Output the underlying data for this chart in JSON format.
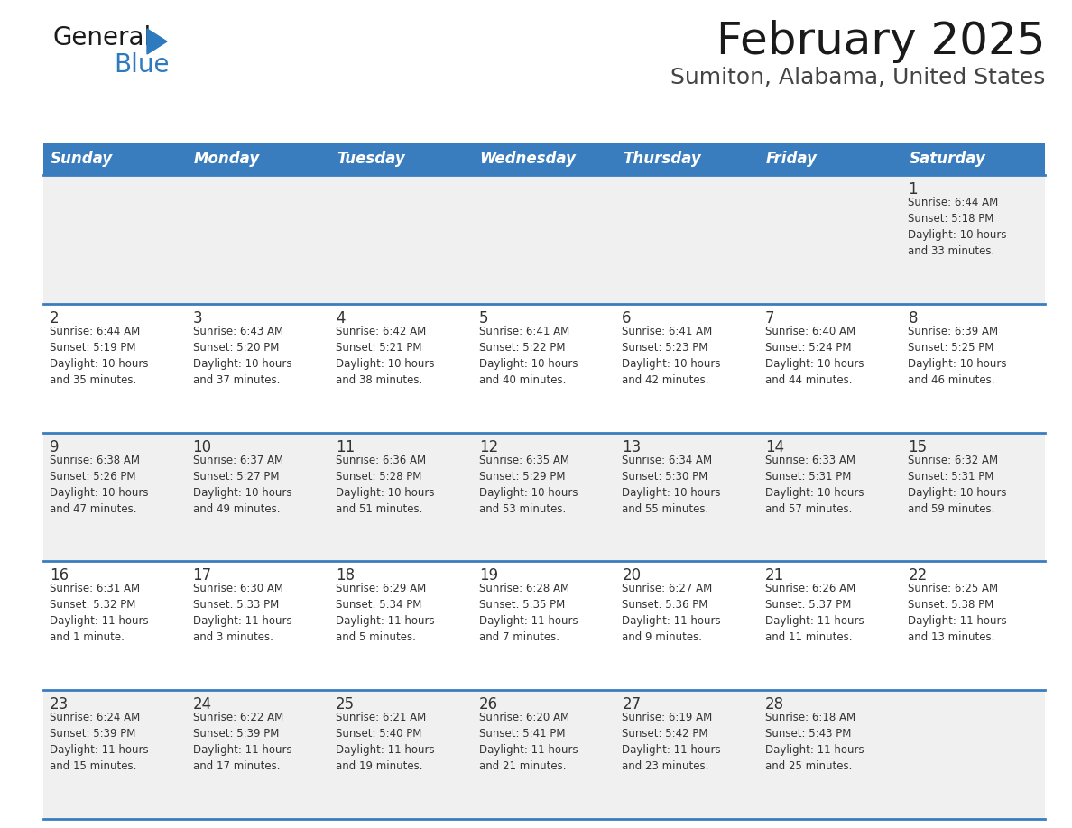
{
  "title": "February 2025",
  "subtitle": "Sumiton, Alabama, United States",
  "days_of_week": [
    "Sunday",
    "Monday",
    "Tuesday",
    "Wednesday",
    "Thursday",
    "Friday",
    "Saturday"
  ],
  "header_bg": "#3a7dbf",
  "header_text_color": "#ffffff",
  "cell_bg_light": "#f0f0f0",
  "cell_bg_white": "#ffffff",
  "row_separator_color": "#3a7dbf",
  "day_number_color": "#333333",
  "text_color": "#333333",
  "title_color": "#1a1a1a",
  "subtitle_color": "#444444",
  "logo_general_color": "#1a1a1a",
  "logo_blue_color": "#2e7abf",
  "calendar_data": [
    [
      {
        "day": null,
        "info": null
      },
      {
        "day": null,
        "info": null
      },
      {
        "day": null,
        "info": null
      },
      {
        "day": null,
        "info": null
      },
      {
        "day": null,
        "info": null
      },
      {
        "day": null,
        "info": null
      },
      {
        "day": 1,
        "info": "Sunrise: 6:44 AM\nSunset: 5:18 PM\nDaylight: 10 hours\nand 33 minutes."
      }
    ],
    [
      {
        "day": 2,
        "info": "Sunrise: 6:44 AM\nSunset: 5:19 PM\nDaylight: 10 hours\nand 35 minutes."
      },
      {
        "day": 3,
        "info": "Sunrise: 6:43 AM\nSunset: 5:20 PM\nDaylight: 10 hours\nand 37 minutes."
      },
      {
        "day": 4,
        "info": "Sunrise: 6:42 AM\nSunset: 5:21 PM\nDaylight: 10 hours\nand 38 minutes."
      },
      {
        "day": 5,
        "info": "Sunrise: 6:41 AM\nSunset: 5:22 PM\nDaylight: 10 hours\nand 40 minutes."
      },
      {
        "day": 6,
        "info": "Sunrise: 6:41 AM\nSunset: 5:23 PM\nDaylight: 10 hours\nand 42 minutes."
      },
      {
        "day": 7,
        "info": "Sunrise: 6:40 AM\nSunset: 5:24 PM\nDaylight: 10 hours\nand 44 minutes."
      },
      {
        "day": 8,
        "info": "Sunrise: 6:39 AM\nSunset: 5:25 PM\nDaylight: 10 hours\nand 46 minutes."
      }
    ],
    [
      {
        "day": 9,
        "info": "Sunrise: 6:38 AM\nSunset: 5:26 PM\nDaylight: 10 hours\nand 47 minutes."
      },
      {
        "day": 10,
        "info": "Sunrise: 6:37 AM\nSunset: 5:27 PM\nDaylight: 10 hours\nand 49 minutes."
      },
      {
        "day": 11,
        "info": "Sunrise: 6:36 AM\nSunset: 5:28 PM\nDaylight: 10 hours\nand 51 minutes."
      },
      {
        "day": 12,
        "info": "Sunrise: 6:35 AM\nSunset: 5:29 PM\nDaylight: 10 hours\nand 53 minutes."
      },
      {
        "day": 13,
        "info": "Sunrise: 6:34 AM\nSunset: 5:30 PM\nDaylight: 10 hours\nand 55 minutes."
      },
      {
        "day": 14,
        "info": "Sunrise: 6:33 AM\nSunset: 5:31 PM\nDaylight: 10 hours\nand 57 minutes."
      },
      {
        "day": 15,
        "info": "Sunrise: 6:32 AM\nSunset: 5:31 PM\nDaylight: 10 hours\nand 59 minutes."
      }
    ],
    [
      {
        "day": 16,
        "info": "Sunrise: 6:31 AM\nSunset: 5:32 PM\nDaylight: 11 hours\nand 1 minute."
      },
      {
        "day": 17,
        "info": "Sunrise: 6:30 AM\nSunset: 5:33 PM\nDaylight: 11 hours\nand 3 minutes."
      },
      {
        "day": 18,
        "info": "Sunrise: 6:29 AM\nSunset: 5:34 PM\nDaylight: 11 hours\nand 5 minutes."
      },
      {
        "day": 19,
        "info": "Sunrise: 6:28 AM\nSunset: 5:35 PM\nDaylight: 11 hours\nand 7 minutes."
      },
      {
        "day": 20,
        "info": "Sunrise: 6:27 AM\nSunset: 5:36 PM\nDaylight: 11 hours\nand 9 minutes."
      },
      {
        "day": 21,
        "info": "Sunrise: 6:26 AM\nSunset: 5:37 PM\nDaylight: 11 hours\nand 11 minutes."
      },
      {
        "day": 22,
        "info": "Sunrise: 6:25 AM\nSunset: 5:38 PM\nDaylight: 11 hours\nand 13 minutes."
      }
    ],
    [
      {
        "day": 23,
        "info": "Sunrise: 6:24 AM\nSunset: 5:39 PM\nDaylight: 11 hours\nand 15 minutes."
      },
      {
        "day": 24,
        "info": "Sunrise: 6:22 AM\nSunset: 5:39 PM\nDaylight: 11 hours\nand 17 minutes."
      },
      {
        "day": 25,
        "info": "Sunrise: 6:21 AM\nSunset: 5:40 PM\nDaylight: 11 hours\nand 19 minutes."
      },
      {
        "day": 26,
        "info": "Sunrise: 6:20 AM\nSunset: 5:41 PM\nDaylight: 11 hours\nand 21 minutes."
      },
      {
        "day": 27,
        "info": "Sunrise: 6:19 AM\nSunset: 5:42 PM\nDaylight: 11 hours\nand 23 minutes."
      },
      {
        "day": 28,
        "info": "Sunrise: 6:18 AM\nSunset: 5:43 PM\nDaylight: 11 hours\nand 25 minutes."
      },
      {
        "day": null,
        "info": null
      }
    ]
  ]
}
